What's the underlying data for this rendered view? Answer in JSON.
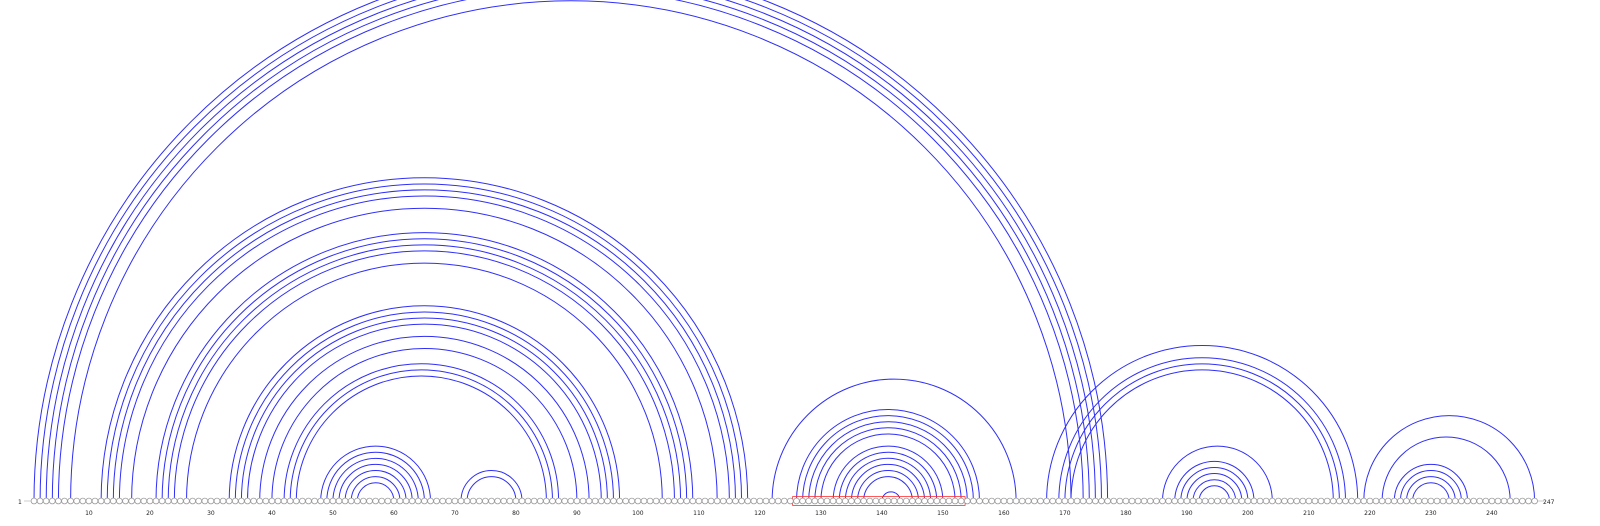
{
  "chart_data": {
    "type": "arc_diagram",
    "sequence_length": 247,
    "start_label": "1",
    "end_label": "247",
    "tick_labels": [
      "10",
      "20",
      "30",
      "40",
      "50",
      "60",
      "70",
      "80",
      "90",
      "100",
      "110",
      "120",
      "130",
      "140",
      "150",
      "160",
      "170",
      "180",
      "190",
      "200",
      "210",
      "220",
      "230",
      "240"
    ],
    "highlight_region": [
      126,
      153
    ],
    "colors": {
      "arc": "#2f2ff5",
      "highlight": "#ff3030",
      "nucleotide_stroke": "#9a9a9a"
    },
    "base_pairs": [
      [
        1,
        177
      ],
      [
        2,
        176
      ],
      [
        3,
        175
      ],
      [
        4,
        174
      ],
      [
        5,
        173
      ],
      [
        7,
        171
      ],
      [
        12,
        118
      ],
      [
        13,
        117
      ],
      [
        14,
        116
      ],
      [
        15,
        115
      ],
      [
        17,
        113
      ],
      [
        21,
        109
      ],
      [
        22,
        108
      ],
      [
        23,
        107
      ],
      [
        24,
        106
      ],
      [
        26,
        104
      ],
      [
        33,
        97
      ],
      [
        34,
        96
      ],
      [
        35,
        95
      ],
      [
        36,
        94
      ],
      [
        38,
        92
      ],
      [
        40,
        90
      ],
      [
        42,
        87
      ],
      [
        43,
        86
      ],
      [
        44,
        85
      ],
      [
        48,
        66
      ],
      [
        49,
        65
      ],
      [
        50,
        64
      ],
      [
        51,
        63
      ],
      [
        52,
        62
      ],
      [
        53,
        61
      ],
      [
        54,
        60
      ],
      [
        71,
        81
      ],
      [
        72,
        80
      ],
      [
        122,
        162
      ],
      [
        126,
        156
      ],
      [
        127,
        155
      ],
      [
        128,
        154
      ],
      [
        129,
        153
      ],
      [
        130,
        152
      ],
      [
        132,
        150
      ],
      [
        133,
        149
      ],
      [
        134,
        148
      ],
      [
        135,
        147
      ],
      [
        136,
        146
      ],
      [
        137,
        145
      ],
      [
        140,
        143
      ],
      [
        167,
        218
      ],
      [
        169,
        216
      ],
      [
        170,
        215
      ],
      [
        171,
        214
      ],
      [
        186,
        204
      ],
      [
        188,
        201
      ],
      [
        189,
        200
      ],
      [
        190,
        199
      ],
      [
        191,
        198
      ],
      [
        192,
        197
      ],
      [
        219,
        247
      ],
      [
        222,
        243
      ],
      [
        224,
        236
      ],
      [
        225,
        235
      ],
      [
        226,
        234
      ],
      [
        227,
        233
      ]
    ]
  }
}
